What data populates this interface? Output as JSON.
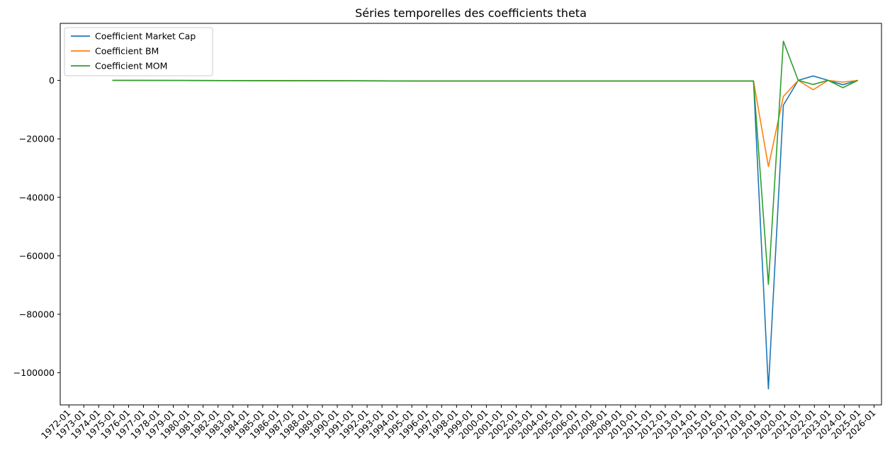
{
  "chart_data": {
    "type": "line",
    "title": "Séries temporelles des coefficients theta",
    "xlabel": "",
    "ylabel": "",
    "x_ticks": [
      "1972-01",
      "1973-01",
      "1974-01",
      "1975-01",
      "1976-01",
      "1977-01",
      "1978-01",
      "1979-01",
      "1980-01",
      "1981-01",
      "1982-01",
      "1983-01",
      "1984-01",
      "1985-01",
      "1986-01",
      "1987-01",
      "1988-01",
      "1989-01",
      "1990-01",
      "1991-01",
      "1992-01",
      "1993-01",
      "1994-01",
      "1995-01",
      "1996-01",
      "1997-01",
      "1998-01",
      "1999-01",
      "2000-01",
      "2001-01",
      "2002-01",
      "2003-01",
      "2004-01",
      "2005-01",
      "2006-01",
      "2007-01",
      "2008-01",
      "2009-01",
      "2010-01",
      "2011-01",
      "2012-01",
      "2013-01",
      "2014-01",
      "2015-01",
      "2016-01",
      "2017-01",
      "2018-01",
      "2019-01",
      "2020-01",
      "2021-01",
      "2022-01",
      "2023-01",
      "2024-01",
      "2025-01",
      "2026-01"
    ],
    "y_ticks": [
      0,
      -20000,
      -40000,
      -60000,
      -80000,
      -100000
    ],
    "y_tick_labels": [
      "0",
      "−20000",
      "−40000",
      "−60000",
      "−80000",
      "−100000"
    ],
    "xlim": [
      "1971-06",
      "2026-07"
    ],
    "ylim": [
      -111000,
      19500
    ],
    "grid": false,
    "legend": "top-left",
    "series": [
      {
        "name": "Coefficient Market Cap",
        "color": "#1f77b4",
        "points": [
          [
            "1974-12",
            0
          ],
          [
            "1995-12",
            -200
          ],
          [
            "2017-12",
            -200
          ],
          [
            "2018-12",
            -105500
          ],
          [
            "2019-12",
            -8500
          ],
          [
            "2020-12",
            0
          ],
          [
            "2021-12",
            1500
          ],
          [
            "2022-12",
            0
          ],
          [
            "2023-12",
            -1500
          ],
          [
            "2024-12",
            0
          ]
        ]
      },
      {
        "name": "Coefficient BM",
        "color": "#ff7f0e",
        "points": [
          [
            "1974-12",
            0
          ],
          [
            "1995-12",
            -200
          ],
          [
            "2017-12",
            -200
          ],
          [
            "2018-12",
            -29500
          ],
          [
            "2019-12",
            -5500
          ],
          [
            "2020-12",
            0
          ],
          [
            "2021-12",
            -3200
          ],
          [
            "2022-12",
            0
          ],
          [
            "2023-12",
            -600
          ],
          [
            "2024-12",
            0
          ]
        ]
      },
      {
        "name": "Coefficient MOM",
        "color": "#2ca02c",
        "points": [
          [
            "1974-12",
            0
          ],
          [
            "1995-12",
            -200
          ],
          [
            "2017-12",
            -200
          ],
          [
            "2018-12",
            -69800
          ],
          [
            "2019-12",
            13400
          ],
          [
            "2020-12",
            0
          ],
          [
            "2021-12",
            -1400
          ],
          [
            "2022-12",
            0
          ],
          [
            "2023-12",
            -2500
          ],
          [
            "2024-12",
            0
          ]
        ]
      }
    ]
  }
}
